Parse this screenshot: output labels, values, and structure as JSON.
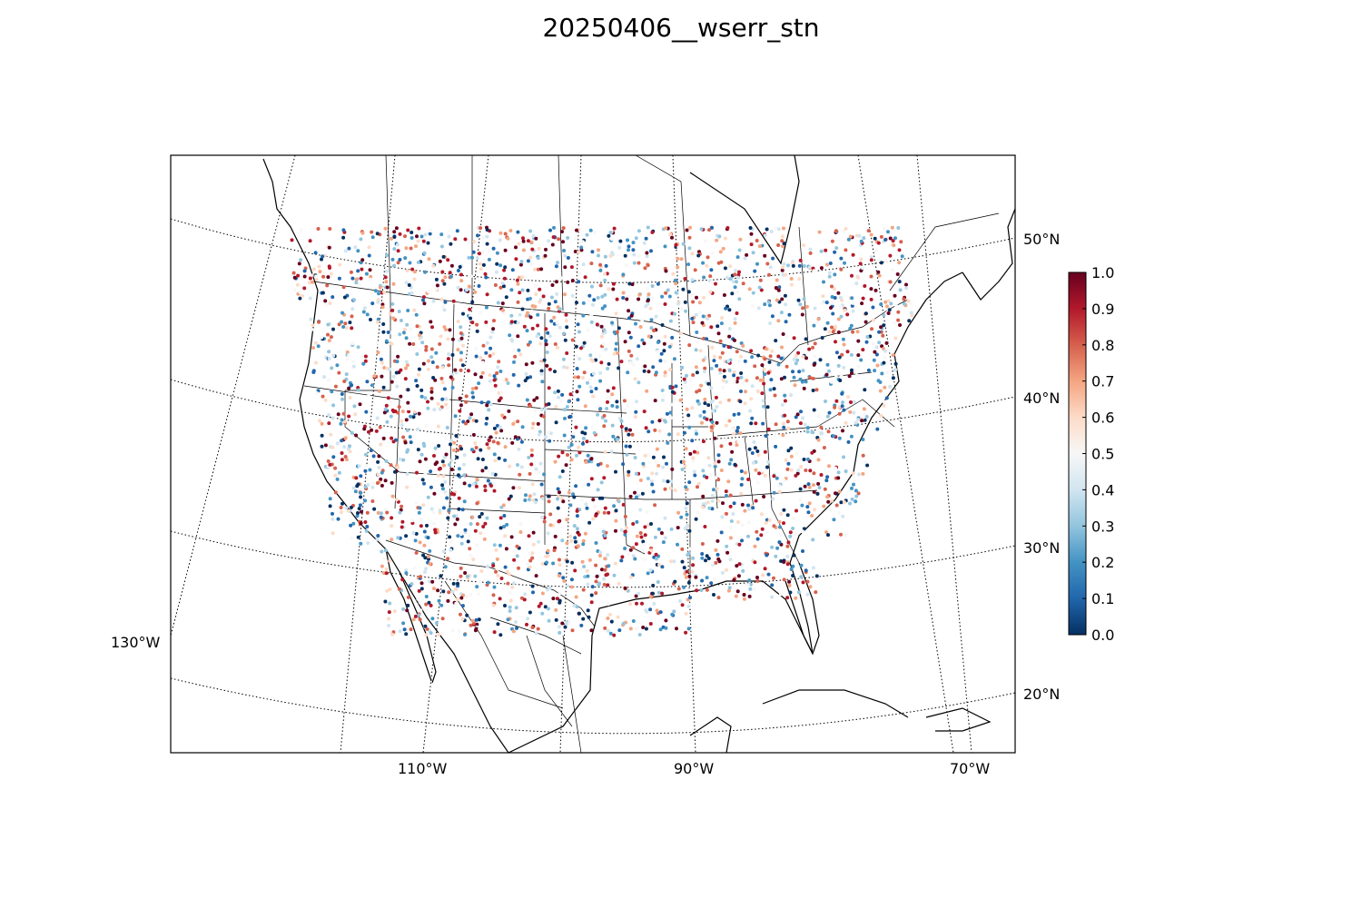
{
  "title": "20250406__wserr_stn",
  "map": {
    "longitude_labels": [
      "130°W",
      "110°W",
      "90°W",
      "70°W"
    ],
    "latitude_labels": [
      "50°N",
      "40°N",
      "30°N",
      "20°N"
    ],
    "projection": "lambert conformal",
    "graticule_style": "dotted"
  },
  "colorbar": {
    "colormap": "RdBu_r",
    "ticks": [
      "0.0",
      "0.1",
      "0.2",
      "0.3",
      "0.4",
      "0.5",
      "0.6",
      "0.7",
      "0.8",
      "0.9",
      "1.0"
    ],
    "min": 0.0,
    "max": 1.0,
    "colors": [
      "#053061",
      "#2166ac",
      "#4393c3",
      "#92c5de",
      "#d1e5f0",
      "#f7f7f7",
      "#fddbc7",
      "#f4a582",
      "#d6604d",
      "#b2182b",
      "#67001f"
    ]
  }
}
